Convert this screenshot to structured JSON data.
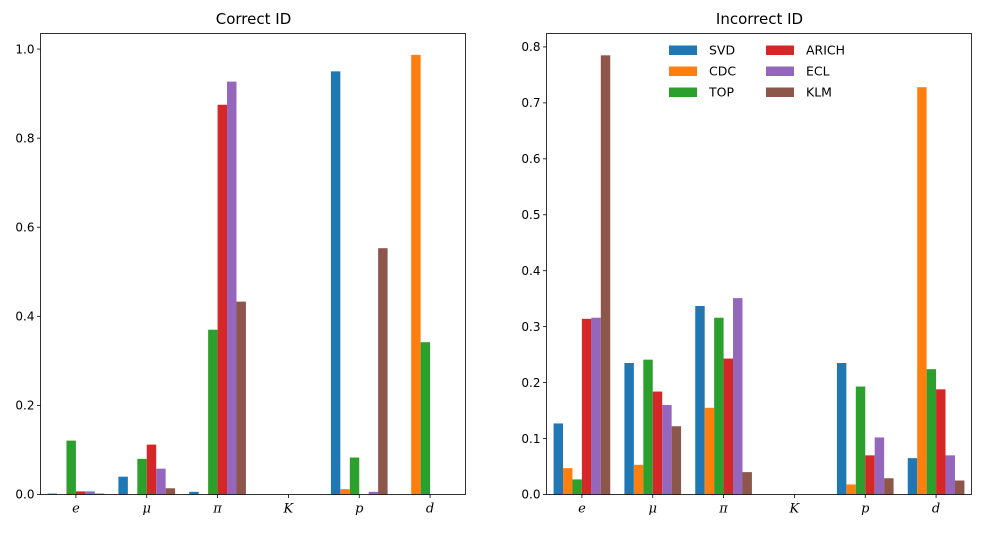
{
  "chart_data": [
    {
      "type": "bar",
      "title": "Correct ID",
      "xlabel": "",
      "ylabel": "",
      "categories": [
        "e",
        "μ",
        "π",
        "K",
        "p",
        "d"
      ],
      "ylim": [
        0,
        1.035
      ],
      "yticks": [
        0.0,
        0.2,
        0.4,
        0.6,
        0.8,
        1.0
      ],
      "ytick_labels": [
        "0.0",
        "0.2",
        "0.4",
        "0.6",
        "0.8",
        "1.0"
      ],
      "legend": null,
      "series": [
        {
          "name": "SVD",
          "color": "#1f77b4",
          "values": [
            0.002,
            0.04,
            0.006,
            0.0,
            0.95,
            0.0
          ]
        },
        {
          "name": "CDC",
          "color": "#ff7f0e",
          "values": [
            0.0,
            0.0,
            0.0,
            0.0,
            0.012,
            0.987
          ]
        },
        {
          "name": "TOP",
          "color": "#2ca02c",
          "values": [
            0.121,
            0.08,
            0.37,
            0.0,
            0.083,
            0.342
          ]
        },
        {
          "name": "ARICH",
          "color": "#d62728",
          "values": [
            0.007,
            0.112,
            0.875,
            0.0,
            0.0,
            0.0
          ]
        },
        {
          "name": "ECL",
          "color": "#9467bd",
          "values": [
            0.007,
            0.058,
            0.927,
            0.0,
            0.006,
            0.0
          ]
        },
        {
          "name": "KLM",
          "color": "#8c564b",
          "values": [
            0.002,
            0.014,
            0.433,
            0.0,
            0.553,
            0.0
          ]
        }
      ]
    },
    {
      "type": "bar",
      "title": "Incorrect ID",
      "xlabel": "",
      "ylabel": "",
      "categories": [
        "e",
        "μ",
        "π",
        "K",
        "p",
        "d"
      ],
      "ylim": [
        0,
        0.824
      ],
      "yticks": [
        0.0,
        0.1,
        0.2,
        0.3,
        0.4,
        0.5,
        0.6,
        0.7,
        0.8
      ],
      "ytick_labels": [
        "0.0",
        "0.1",
        "0.2",
        "0.3",
        "0.4",
        "0.5",
        "0.6",
        "0.7",
        "0.8"
      ],
      "legend": "upper center, 2 columns",
      "series": [
        {
          "name": "SVD",
          "color": "#1f77b4",
          "values": [
            0.127,
            0.235,
            0.337,
            0.0,
            0.235,
            0.065
          ]
        },
        {
          "name": "CDC",
          "color": "#ff7f0e",
          "values": [
            0.047,
            0.053,
            0.155,
            0.0,
            0.018,
            0.728
          ]
        },
        {
          "name": "TOP",
          "color": "#2ca02c",
          "values": [
            0.027,
            0.241,
            0.316,
            0.0,
            0.193,
            0.224
          ]
        },
        {
          "name": "ARICH",
          "color": "#d62728",
          "values": [
            0.314,
            0.184,
            0.243,
            0.0,
            0.07,
            0.188
          ]
        },
        {
          "name": "ECL",
          "color": "#9467bd",
          "values": [
            0.316,
            0.16,
            0.351,
            0.0,
            0.102,
            0.07
          ]
        },
        {
          "name": "KLM",
          "color": "#8c564b",
          "values": [
            0.785,
            0.122,
            0.04,
            0.0,
            0.029,
            0.025
          ]
        }
      ]
    }
  ]
}
